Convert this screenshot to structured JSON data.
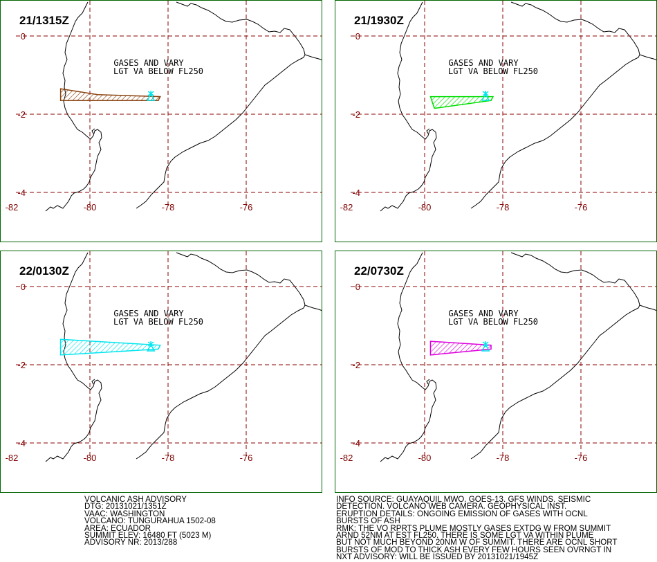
{
  "panels": [
    {
      "time": "21/1315Z",
      "plume_color": "#8b4513",
      "pattern": "hatch-brown",
      "shape": [
        [
          -80.75,
          -1.35
        ],
        [
          -79.8,
          -1.5
        ],
        [
          -78.2,
          -1.55
        ],
        [
          -78.25,
          -1.65
        ],
        [
          -80.75,
          -1.65
        ]
      ]
    },
    {
      "time": "21/1930Z",
      "plume_color": "#00dd00",
      "pattern": "hatch-green",
      "shape": [
        [
          -79.85,
          -1.55
        ],
        [
          -78.25,
          -1.55
        ],
        [
          -78.3,
          -1.65
        ],
        [
          -79.75,
          -1.85
        ]
      ]
    },
    {
      "time": "22/0130Z",
      "plume_color": "#00e5ee",
      "pattern": "hatch-cyan",
      "shape": [
        [
          -80.75,
          -1.35
        ],
        [
          -78.2,
          -1.5
        ],
        [
          -78.25,
          -1.6
        ],
        [
          -80.75,
          -1.75
        ]
      ]
    },
    {
      "time": "22/0730Z",
      "plume_color": "#dd00dd",
      "pattern": "hatch-magenta",
      "shape": [
        [
          -79.85,
          -1.4
        ],
        [
          -78.3,
          -1.5
        ],
        [
          -78.3,
          -1.6
        ],
        [
          -79.85,
          -1.75
        ]
      ]
    }
  ],
  "map_labels": {
    "line1": "GASES AND VARY",
    "line2": "LGT VA BELOW FL250"
  },
  "axis": {
    "lat_ticks": [
      "0",
      "-2",
      "-4"
    ],
    "lon_ticks": [
      "-82",
      "-80",
      "-78",
      "-76"
    ],
    "lat_values": [
      0,
      -2,
      -4
    ],
    "lon_values": [
      -82,
      -80,
      -78,
      -76
    ]
  },
  "volcano": {
    "name": "TUNGURAHUA",
    "lat": -1.47,
    "lon": -78.44,
    "marker_color": "#00e5ee"
  },
  "colors": {
    "panel_border": "#006400",
    "grid": "#8b0000",
    "tick_label": "#800000",
    "coast": "#000000"
  },
  "advisory_left": [
    "VOLCANIC ASH ADVISORY",
    "DTG: 20131021/1351Z",
    "VAAC: WASHINGTON",
    "VOLCANO: TUNGURAHUA 1502-08",
    "AREA: ECUADOR",
    "SUMMIT ELEV: 16480 FT (5023 M)",
    "ADVISORY NR: 2013/288"
  ],
  "advisory_right": [
    "INFO SOURCE: GUAYAQUIL MWO. GOES-13. GFS WINDS. SEISMIC",
    "DETECTION. VOLCANO WEB CAMERA. GEOPHYSICAL INST.",
    "ERUPTION DETAILS: ONGOING EMISSION OF GASES WITH OCNL",
    "BURSTS OF ASH",
    "RMK: THE VO RPRTS PLUME MOSTLY GASES EXTDG W FROM SUMMIT",
    "ARND 52NM AT EST FL250. THERE IS SOME LGT VA WITHIN PLUME",
    "BUT NOT MUCH BEYOND 20NM W OF SUMMIT. THERE ARE OCNL SHORT",
    "BURSTS OF MOD TO THICK ASH EVERY FEW HOURS SEEN OVRNGT IN",
    "NXT ADVISORY: WILL BE ISSUED BY 20131021/1945Z"
  ]
}
